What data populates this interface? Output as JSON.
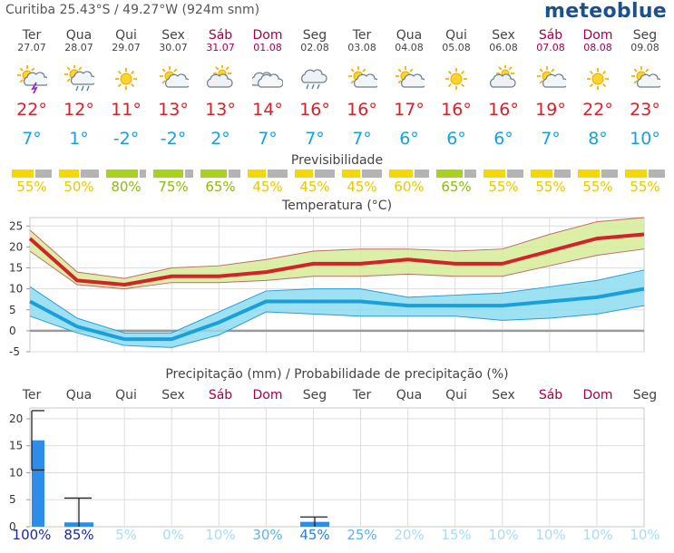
{
  "header": {
    "location": "Curitiba  25.43°S / 49.27°W (924m snm)",
    "brand": "meteoblue"
  },
  "days": [
    {
      "name": "Ter",
      "date": "27.07",
      "weekend": false,
      "icon": "sun-thunder-rain-icon",
      "tmax": "22°",
      "tmin": "7°",
      "predict_pct": "55%",
      "predict_level": 0.55,
      "precip_pct": "100%"
    },
    {
      "name": "Qua",
      "date": "28.07",
      "weekend": false,
      "icon": "sun-cloud-rain-icon",
      "tmax": "12°",
      "tmin": "1°",
      "predict_pct": "50%",
      "predict_level": 0.5,
      "precip_pct": "85%"
    },
    {
      "name": "Qui",
      "date": "29.07",
      "weekend": false,
      "icon": "sun-icon",
      "tmax": "11°",
      "tmin": "-2°",
      "predict_pct": "80%",
      "predict_level": 0.8,
      "precip_pct": "5%"
    },
    {
      "name": "Sex",
      "date": "30.07",
      "weekend": false,
      "icon": "sun-cloud-icon",
      "tmax": "13°",
      "tmin": "-2°",
      "predict_pct": "75%",
      "predict_level": 0.75,
      "precip_pct": "0%"
    },
    {
      "name": "Sáb",
      "date": "31.07",
      "weekend": true,
      "icon": "cloud-sun-icon",
      "tmax": "13°",
      "tmin": "2°",
      "predict_pct": "65%",
      "predict_level": 0.65,
      "precip_pct": "10%"
    },
    {
      "name": "Dom",
      "date": "01.08",
      "weekend": true,
      "icon": "cloud-icon",
      "tmax": "14°",
      "tmin": "7°",
      "predict_pct": "45%",
      "predict_level": 0.45,
      "precip_pct": "30%"
    },
    {
      "name": "Seg",
      "date": "02.08",
      "weekend": false,
      "icon": "cloud-rain-icon",
      "tmax": "16°",
      "tmin": "7°",
      "predict_pct": "45%",
      "predict_level": 0.45,
      "precip_pct": "45%"
    },
    {
      "name": "Ter",
      "date": "03.08",
      "weekend": false,
      "icon": "sun-cloud-icon",
      "tmax": "16°",
      "tmin": "7°",
      "predict_pct": "45%",
      "predict_level": 0.45,
      "precip_pct": "25%"
    },
    {
      "name": "Qua",
      "date": "04.08",
      "weekend": false,
      "icon": "sun-cloud-icon",
      "tmax": "17°",
      "tmin": "6°",
      "predict_pct": "60%",
      "predict_level": 0.6,
      "precip_pct": "20%"
    },
    {
      "name": "Qui",
      "date": "05.08",
      "weekend": false,
      "icon": "sun-icon",
      "tmax": "16°",
      "tmin": "6°",
      "predict_pct": "65%",
      "predict_level": 0.65,
      "precip_pct": "15%"
    },
    {
      "name": "Sex",
      "date": "06.08",
      "weekend": false,
      "icon": "cloud-sun-icon",
      "tmax": "16°",
      "tmin": "6°",
      "predict_pct": "55%",
      "predict_level": 0.55,
      "precip_pct": "10%"
    },
    {
      "name": "Sáb",
      "date": "07.08",
      "weekend": true,
      "icon": "sun-cloud-icon",
      "tmax": "19°",
      "tmin": "7°",
      "predict_pct": "55%",
      "predict_level": 0.55,
      "precip_pct": "10%"
    },
    {
      "name": "Dom",
      "date": "08.08",
      "weekend": true,
      "icon": "sun-icon",
      "tmax": "22°",
      "tmin": "8°",
      "predict_pct": "55%",
      "predict_level": 0.55,
      "precip_pct": "10%"
    },
    {
      "name": "Seg",
      "date": "09.08",
      "weekend": false,
      "icon": "sun-cloud-icon",
      "tmax": "23°",
      "tmin": "10°",
      "predict_pct": "55%",
      "predict_level": 0.55,
      "precip_pct": "10%"
    }
  ],
  "colors": {
    "tmax": "#d2232a",
    "tmin": "#1aa0d8",
    "weekend": "#a3004f",
    "predict_high": "#a8d21e",
    "predict_mid": "#f5d800",
    "predict_rest": "#b4b4b4",
    "tmax_band": "#d6ec98",
    "tmin_band": "#8ddcf0",
    "precip_bar": "#2e8de8"
  },
  "predictability_title": "Previsibilidade",
  "chart_data": [
    {
      "type": "line",
      "title": "Temperatura (°C)",
      "categories": [
        "Ter",
        "Qua",
        "Qui",
        "Sex",
        "Sáb",
        "Dom",
        "Seg",
        "Ter",
        "Qua",
        "Qui",
        "Sex",
        "Sáb",
        "Dom",
        "Seg"
      ],
      "ylim": [
        -5,
        27
      ],
      "yticks": [
        -5,
        0,
        5,
        10,
        15,
        20,
        25
      ],
      "grid": true,
      "series": [
        {
          "name": "",
          "values": [
            22,
            12,
            11,
            13,
            13,
            14,
            16,
            16,
            17,
            16,
            16,
            19,
            22,
            23
          ],
          "range_upper": [
            24,
            14,
            12.5,
            15,
            15.5,
            17,
            19,
            19.5,
            19.5,
            19,
            19.5,
            23,
            26,
            27
          ],
          "range_lower": [
            19,
            11,
            10,
            11.5,
            11.5,
            12,
            13,
            13,
            13.5,
            13,
            13,
            15.5,
            18,
            19.5
          ]
        },
        {
          "name": "",
          "values": [
            7,
            1,
            -2,
            -2,
            2,
            7,
            7,
            7,
            6,
            6,
            6,
            7,
            8,
            10
          ],
          "range_upper": [
            10.5,
            3,
            -0.5,
            -0.5,
            4.5,
            9.5,
            10,
            10,
            8,
            8.5,
            9,
            10.5,
            12,
            14.5
          ],
          "range_lower": [
            3.5,
            -0.5,
            -3.5,
            -4,
            -1,
            4.5,
            4,
            3.5,
            3.5,
            3.5,
            2.5,
            3,
            4,
            6
          ]
        }
      ]
    },
    {
      "type": "bar",
      "title": "Precipitação (mm) / Probabilidade de precipitação (%)",
      "categories": [
        "Ter",
        "Qua",
        "Qui",
        "Sex",
        "Sáb",
        "Dom",
        "Seg",
        "Ter",
        "Qua",
        "Qui",
        "Sex",
        "Sáb",
        "Dom",
        "Seg"
      ],
      "ylim": [
        0,
        22
      ],
      "yticks": [
        0,
        5,
        10,
        15,
        20
      ],
      "values": [
        16,
        0.8,
        0,
        0,
        0,
        0,
        0.9,
        0,
        0,
        0,
        0,
        0,
        0,
        0
      ],
      "error_high": [
        21.5,
        5.3,
        0,
        0,
        0,
        0,
        1.8,
        0,
        0,
        0,
        0,
        0,
        0,
        0
      ],
      "error_low": [
        10.5,
        0,
        0,
        0,
        0,
        0,
        0,
        0,
        0,
        0,
        0,
        0,
        0,
        0
      ],
      "probability": [
        "100%",
        "85%",
        "5%",
        "0%",
        "10%",
        "30%",
        "45%",
        "25%",
        "20%",
        "15%",
        "10%",
        "10%",
        "10%",
        "10%"
      ]
    }
  ]
}
